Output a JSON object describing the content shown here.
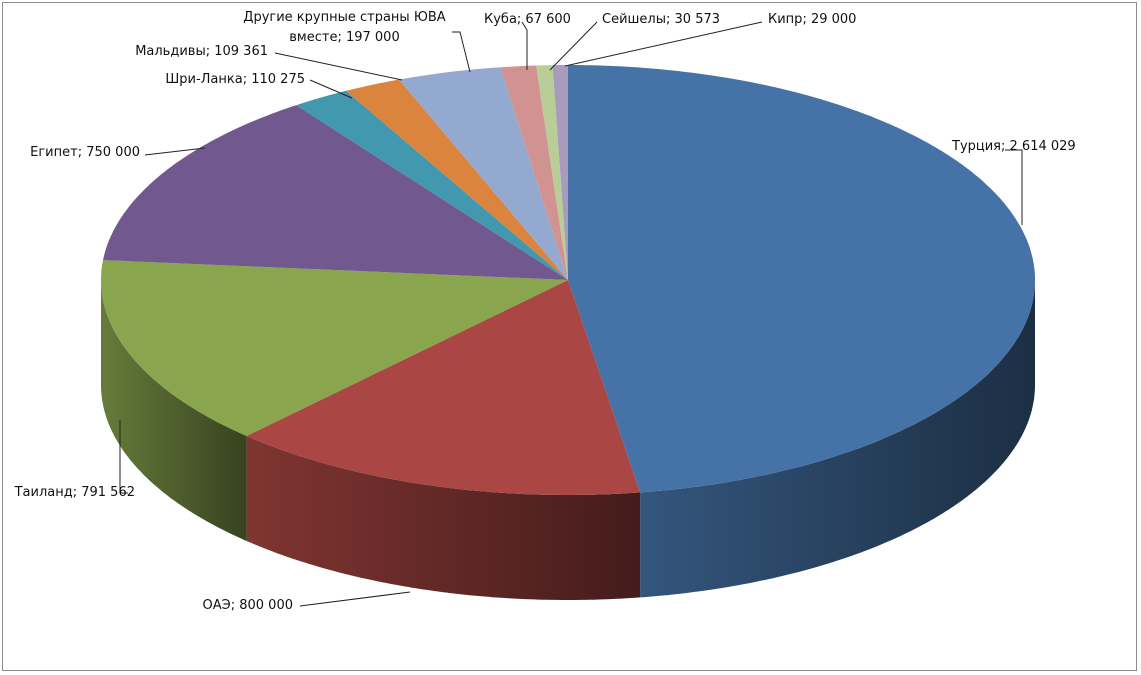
{
  "chart_data": {
    "type": "pie",
    "categories": [
      "Турция",
      "ОАЭ",
      "Таиланд",
      "Египет",
      "Шри-Ланка",
      "Мальдивы",
      "Другие крупные страны ЮВА вместе",
      "Куба",
      "Сейшелы",
      "Кипр"
    ],
    "values": [
      2614029,
      800000,
      791562,
      750000,
      110275,
      109361,
      197000,
      67600,
      30573,
      29000
    ],
    "value_labels": [
      "2 614 029",
      "800 000",
      "791 562",
      "750 000",
      "110 275",
      "109 361",
      "197 000",
      "67 600",
      "30 573",
      "29 000"
    ],
    "label_separator": "; ",
    "colors": [
      "#4572a7",
      "#aa4643",
      "#89a54e",
      "#71588f",
      "#4198af",
      "#db843d",
      "#93a9cf",
      "#d19392",
      "#b9cd96",
      "#a99bbd"
    ]
  }
}
